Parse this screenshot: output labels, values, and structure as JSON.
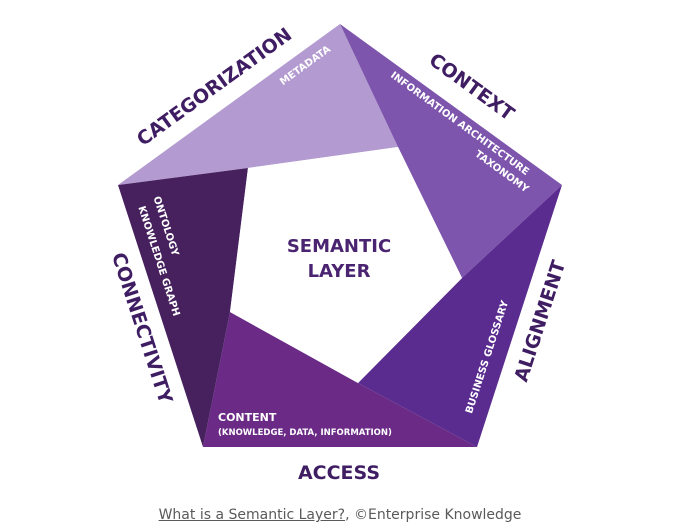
{
  "diagram": {
    "center_label": [
      "SEMANTIC",
      "LAYER"
    ],
    "outer_labels": {
      "categorization": "CATEGORIZATION",
      "context": "CONTEXT",
      "alignment": "ALIGNMENT",
      "access": "ACCESS",
      "connectivity": "CONNECTIVITY"
    },
    "segment_labels": {
      "metadata": "METADATA",
      "information_architecture": "INFORMATION ARCHITECTURE",
      "taxonomy": "TAXONOMY",
      "business_glossary": "BUSINESS GLOSSARY",
      "content": "CONTENT",
      "content_detail": "(KNOWLEDGE, DATA, INFORMATION)",
      "ontology": "ONTOLOGY",
      "knowledge_graph": "KNOWLEDGE GRAPH"
    },
    "colors": {
      "metadata_segment": "#b39ad0",
      "context_segment": "#7e55ad",
      "alignment_segment": "#5a2c8f",
      "access_segment": "#6a2a86",
      "connectivity_segment": "#47205e",
      "label_text": "#3f1d63",
      "center_text": "#4a2470"
    }
  },
  "caption": {
    "link_text": "What is a Semantic Layer?",
    "suffix": ", ©Enterprise Knowledge"
  }
}
